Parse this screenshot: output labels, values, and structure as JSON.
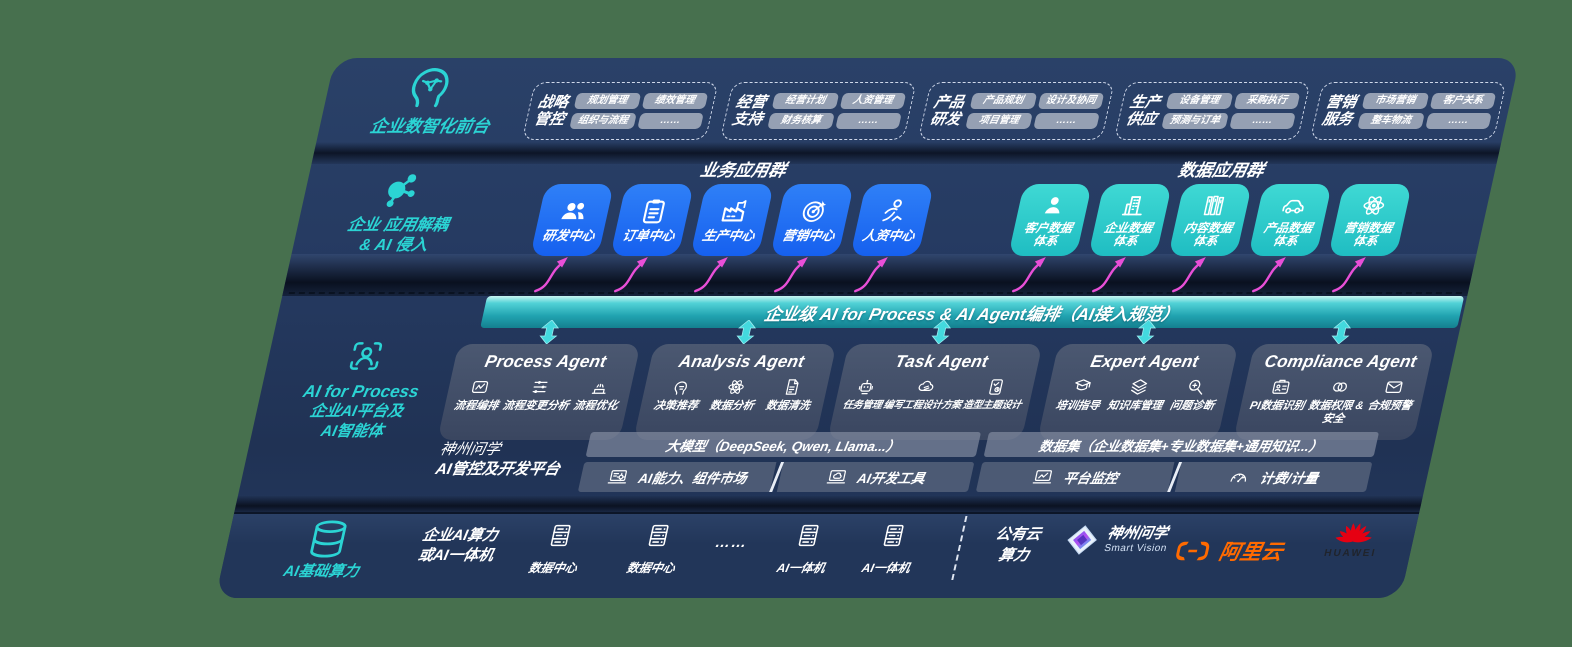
{
  "page": {
    "background": "#47704e"
  },
  "rails": {
    "front_office": "企业数智化前台",
    "decouple_line1": "企业 应用解耦",
    "decouple_line2": "& AI 侵入",
    "aip_line1": "AI for Process",
    "aip_line2": "企业AI平台及",
    "aip_line3": "AI智能体",
    "compute": "AI基础算力"
  },
  "front_office_groups": [
    {
      "label_line1": "战略",
      "label_line2": "管控",
      "items": [
        "规划管理",
        "绩效管理",
        "组织与流程",
        "……"
      ]
    },
    {
      "label_line1": "经营",
      "label_line2": "支持",
      "items": [
        "经营计划",
        "人资管理",
        "财务核算",
        "……"
      ]
    },
    {
      "label_line1": "产品",
      "label_line2": "研发",
      "items": [
        "产品规划",
        "设计及协同",
        "项目管理",
        "……"
      ]
    },
    {
      "label_line1": "生产",
      "label_line2": "供应",
      "items": [
        "设备管理",
        "采购执行",
        "预测与订单",
        "……"
      ]
    },
    {
      "label_line1": "营销",
      "label_line2": "服务",
      "items": [
        "市场营销",
        "客户关系",
        "整车物流",
        "……"
      ]
    }
  ],
  "app_layer": {
    "business_heading": "业务应用群",
    "business_tiles": [
      {
        "label": "研发中心",
        "icon": "people"
      },
      {
        "label": "订单中心",
        "icon": "clipboard"
      },
      {
        "label": "生产中心",
        "icon": "factory"
      },
      {
        "label": "营销中心",
        "icon": "target"
      },
      {
        "label": "人资中心",
        "icon": "person-run"
      }
    ],
    "data_heading": "数据应用群",
    "data_tiles": [
      {
        "label": "客户数据\n体系",
        "icon": "person"
      },
      {
        "label": "企业数据\n体系",
        "icon": "building"
      },
      {
        "label": "内容数据\n体系",
        "icon": "books"
      },
      {
        "label": "产品数据\n体系",
        "icon": "car"
      },
      {
        "label": "营销数据\n体系",
        "icon": "atom"
      }
    ]
  },
  "orchestration_bar": {
    "text": "企业级 AI for Process & AI Agent编排（AI接入规范）"
  },
  "agents": [
    {
      "title": "Process Agent",
      "items": [
        {
          "label": "流程编排",
          "icon": "flow-box"
        },
        {
          "label": "流程变更分析",
          "icon": "sliders"
        },
        {
          "label": "流程优化",
          "icon": "conveyor"
        }
      ]
    },
    {
      "title": "Analysis Agent",
      "items": [
        {
          "label": "决策推荐",
          "icon": "head-gear"
        },
        {
          "label": "数据分析",
          "icon": "atom"
        },
        {
          "label": "数据清洗",
          "icon": "doc-lines"
        }
      ]
    },
    {
      "title": "Task Agent",
      "items": [
        {
          "label": "任务管理",
          "icon": "robot"
        },
        {
          "label": "编写工程设计方案",
          "icon": "cloud-pen"
        },
        {
          "label": "造型主题设计",
          "icon": "tablet-design"
        }
      ]
    },
    {
      "title": "Expert Agent",
      "items": [
        {
          "label": "培训指导",
          "icon": "training"
        },
        {
          "label": "知识库管理",
          "icon": "layers"
        },
        {
          "label": "问题诊断",
          "icon": "diagnose"
        }
      ]
    },
    {
      "title": "Compliance Agent",
      "items": [
        {
          "label": "PI数据识别",
          "icon": "id-card"
        },
        {
          "label": "数据权限 &\n安全",
          "icon": "rings"
        },
        {
          "label": "合规预警",
          "icon": "mail-alert"
        }
      ]
    }
  ],
  "platform": {
    "label_line1": "神州问学",
    "label_line2": "AI管控及开发平台",
    "model_bar": "大模型（DeepSeek, Qwen, Llama...）",
    "left_cells": [
      {
        "label": "AI能力、组件市场",
        "icon": "monitor-gear"
      },
      {
        "label": "AI开发工具",
        "icon": "monitor-cloud"
      }
    ],
    "dataset_bar": "数据集（企业数据集+专业数据集+通用知识...）",
    "right_cells": [
      {
        "label": "平台监控",
        "icon": "monitor-chart"
      },
      {
        "label": "计费/计量",
        "icon": "gauge"
      }
    ]
  },
  "compute_layer": {
    "cluster_line1": "企业AI算力",
    "cluster_line2": "或AI一体机",
    "nodes": [
      {
        "label": "数据中心",
        "icon": "server"
      },
      {
        "label": "数据中心",
        "icon": "server"
      },
      {
        "label": "……",
        "icon": ""
      },
      {
        "label": "AI一体机",
        "icon": "server"
      },
      {
        "label": "AI一体机",
        "icon": "server"
      }
    ],
    "cloud_line1": "公有云",
    "cloud_line2": "算力",
    "vendors": {
      "sv_name": "神州问学",
      "sv_sub": "Smart Vision",
      "ali": "阿里云",
      "huawei": "HUAWEI"
    }
  },
  "colors": {
    "teal_accent": "#2bd4d4",
    "blue_tile": "#1b6bf2",
    "teal_tile": "#2bc9c9",
    "pink_arrow": "#e84fd7",
    "bar_teal": "#21a3b0",
    "ali_orange": "#ff6a00",
    "huawei_red": "#e60012"
  }
}
